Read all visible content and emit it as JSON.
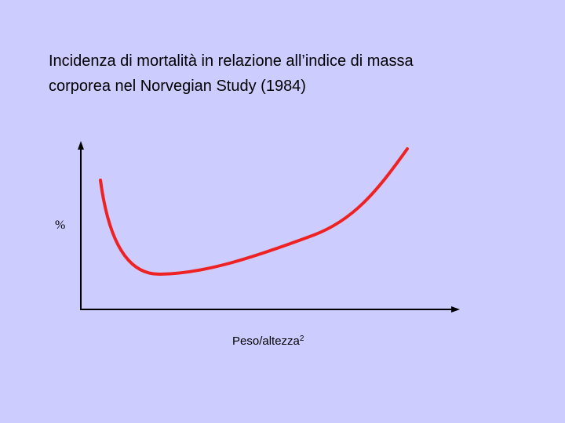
{
  "title": {
    "lines": [
      "Incidenza di mortalità in relazione all’indice di massa",
      "corporea nel Norvegian Study (1984)"
    ]
  },
  "y_axis": {
    "label": "%"
  },
  "x_axis": {
    "label": "Peso/altezza",
    "superscript": "2"
  }
}
